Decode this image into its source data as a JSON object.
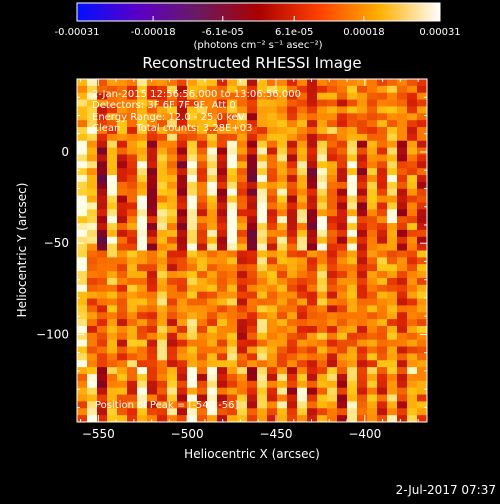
{
  "chart_data": {
    "type": "heatmap",
    "title": "Reconstructed RHESSI Image",
    "xlabel": "Heliocentric X (arcsec)",
    "ylabel": "Heliocentric Y (arcsec)",
    "xlim": [
      -562,
      -365
    ],
    "ylim": [
      -148,
      40
    ],
    "xticks": [
      -550,
      -500,
      -450,
      -400
    ],
    "xtick_labels": [
      "−550",
      "−500",
      "−450",
      "−400"
    ],
    "yticks": [
      0,
      -50,
      -100
    ],
    "ytick_labels": [
      "0",
      "−50",
      "−100"
    ],
    "colorbar": {
      "range": [
        -0.00031,
        0.00031
      ],
      "tick_values": [
        -0.00031,
        -0.00018,
        -6.1e-05,
        6.1e-05,
        0.00018,
        0.00031
      ],
      "tick_labels": [
        "-0.00031",
        "-0.00018",
        "-6.1e-05",
        "6.1e-05",
        "0.00018",
        "0.00031"
      ],
      "label": "(photons cm⁻² s⁻¹ asec⁻²)",
      "colors": [
        "#0010ff",
        "#5a00c8",
        "#6a1a60",
        "#aa0000",
        "#ff4000",
        "#ffb000",
        "#ffffff"
      ]
    },
    "stripes": {
      "count": 35,
      "intensity": [
        0.95,
        0.85,
        0.25,
        0.92,
        0.45,
        0.6,
        0.9,
        0.35,
        0.8,
        0.7,
        0.3,
        0.96,
        0.5,
        0.85,
        0.4,
        0.95,
        0.6,
        0.28,
        0.92,
        0.55,
        0.82,
        0.45,
        0.78,
        0.3,
        0.88,
        0.6,
        0.42,
        0.92,
        0.36,
        0.72,
        0.55,
        0.86,
        0.4,
        0.68,
        0.45
      ],
      "grid_rows": 50
    },
    "annotations": [
      "2-Jan-2015 12:56:56.000 to 13:06:56.000",
      "Detectors: 3F 6F 7F 9F, Att 0",
      "Energy Range: 12.0 - 25.0 keV",
      "Clean     Total counts: 3.28E+03",
      "Position of Peak = [-540,-56]"
    ]
  },
  "footer": {
    "timestamp": "2-Jul-2017 07:37"
  }
}
